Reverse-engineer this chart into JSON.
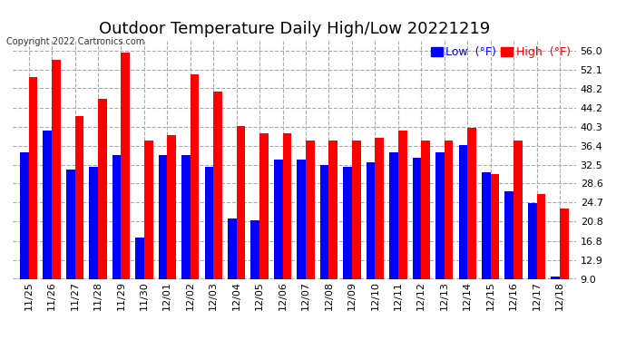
{
  "title": "Outdoor Temperature Daily High/Low 20221219",
  "copyright": "Copyright 2022 Cartronics.com",
  "categories": [
    "11/25",
    "11/26",
    "11/27",
    "11/28",
    "11/29",
    "11/30",
    "12/01",
    "12/02",
    "12/03",
    "12/04",
    "12/05",
    "12/06",
    "12/07",
    "12/08",
    "12/09",
    "12/10",
    "12/11",
    "12/12",
    "12/13",
    "12/14",
    "12/15",
    "12/16",
    "12/17",
    "12/18"
  ],
  "high_values": [
    50.5,
    54.0,
    42.5,
    46.0,
    55.5,
    37.5,
    38.5,
    51.0,
    47.5,
    40.5,
    39.0,
    39.0,
    37.5,
    37.5,
    37.5,
    38.0,
    39.5,
    37.5,
    37.5,
    40.0,
    30.5,
    37.5,
    26.5,
    23.5
  ],
  "low_values": [
    35.0,
    39.5,
    31.5,
    32.0,
    34.5,
    17.5,
    34.5,
    34.5,
    32.0,
    21.5,
    21.0,
    33.5,
    33.5,
    32.5,
    32.0,
    33.0,
    35.0,
    34.0,
    35.0,
    36.5,
    31.0,
    27.0,
    24.5,
    9.5
  ],
  "high_color": "#ff0000",
  "low_color": "#0000ff",
  "background_color": "#ffffff",
  "grid_color": "#aaaaaa",
  "ylim": [
    9.0,
    58.0
  ],
  "yticks": [
    9.0,
    12.9,
    16.8,
    20.8,
    24.7,
    28.6,
    32.5,
    36.4,
    40.3,
    44.2,
    48.2,
    52.1,
    56.0
  ],
  "title_fontsize": 13,
  "tick_fontsize": 8,
  "legend_fontsize": 9,
  "bar_width": 0.38
}
